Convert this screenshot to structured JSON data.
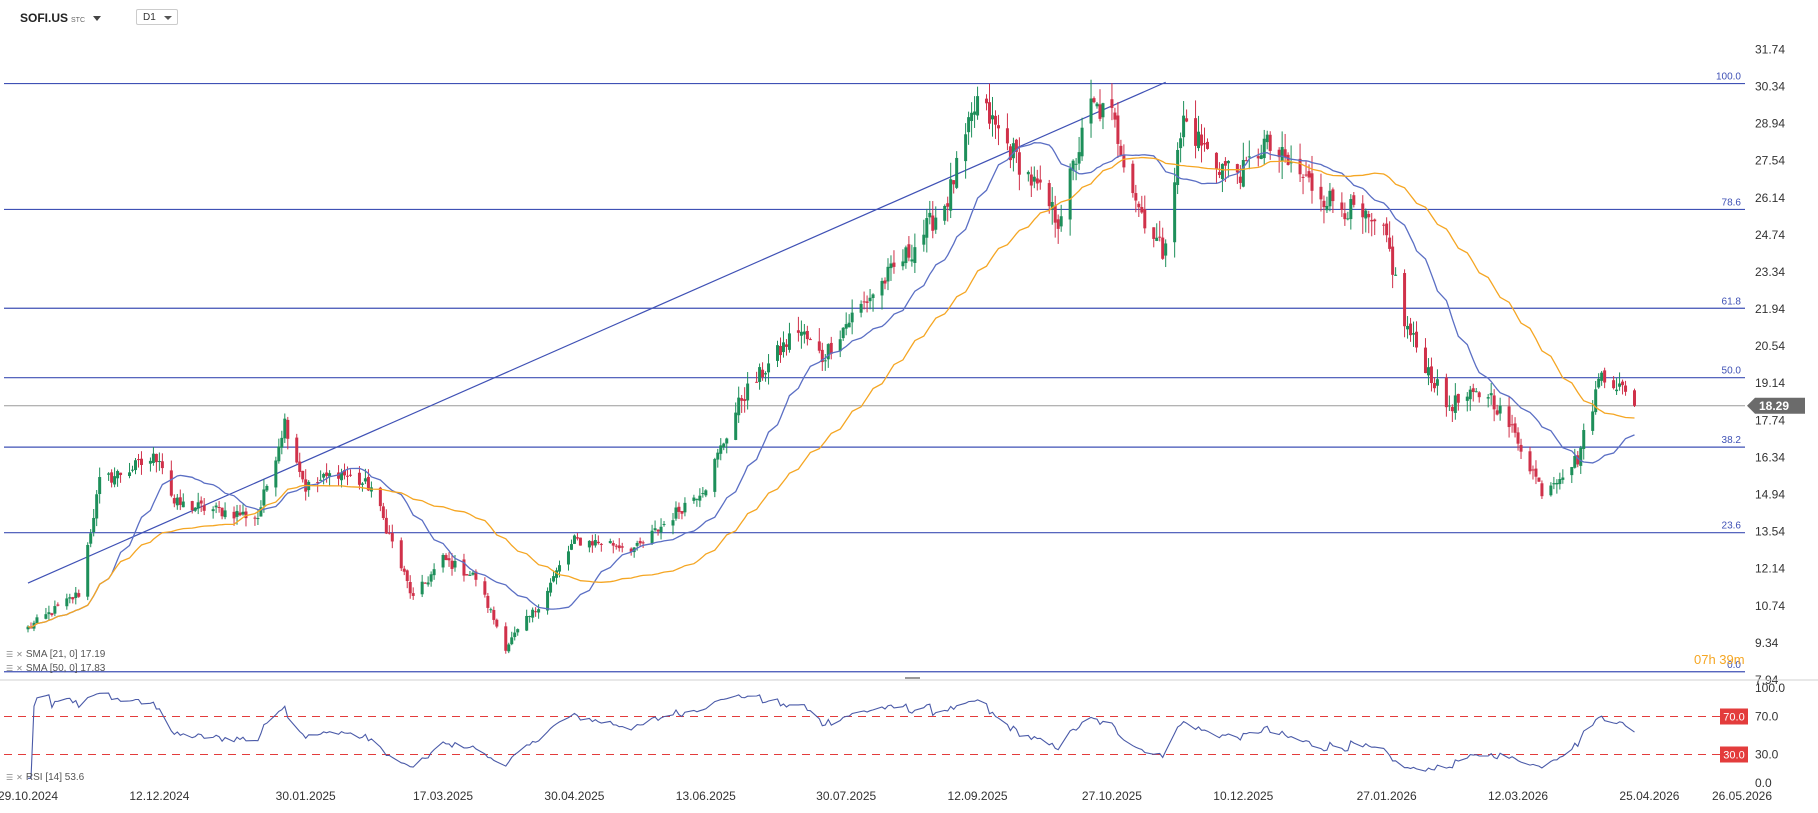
{
  "toolbar": {
    "symbol": "SOFI.US",
    "symbol_suffix": "STC",
    "interval": "D1"
  },
  "indicators": {
    "sma21": {
      "label": "SMA [21, 0] 17.19",
      "color": "#5b6fc4"
    },
    "sma50": {
      "label": "SMA [50, 0] 17.83",
      "color": "#f5a623"
    },
    "rsi": {
      "label": "RSI [14] 53.6",
      "color": "#4a5aa8"
    }
  },
  "countdown": "07h 39m",
  "colors": {
    "up": "#1d8f5a",
    "down": "#d0314a",
    "fib": "#3f51b5",
    "price_box": "#6b6b6b",
    "rsi_level": "#e33c3c"
  },
  "chart_data": {
    "type": "candlestick",
    "price_axis": {
      "ylim": [
        7.94,
        33.0
      ],
      "ticks": [
        31.74,
        30.34,
        28.94,
        27.54,
        26.14,
        24.74,
        23.34,
        21.94,
        20.54,
        19.14,
        17.74,
        16.34,
        14.94,
        13.54,
        12.14,
        10.74,
        9.34,
        7.94
      ]
    },
    "current_price": 18.29,
    "fib_levels": [
      {
        "label": "100.0",
        "value": 30.45
      },
      {
        "label": "78.6",
        "value": 25.7
      },
      {
        "label": "61.8",
        "value": 21.97
      },
      {
        "label": "50.0",
        "value": 19.35
      },
      {
        "label": "38.2",
        "value": 16.73
      },
      {
        "label": "23.6",
        "value": 13.5
      },
      {
        "label": "0.0",
        "value": 8.25
      }
    ],
    "x_axis_labels": [
      "29.10.2024",
      "12.12.2024",
      "30.01.2025",
      "17.03.2025",
      "30.04.2025",
      "13.06.2025",
      "30.07.2025",
      "12.09.2025",
      "27.10.2025",
      "10.12.2025",
      "27.01.2026",
      "12.03.2026",
      "25.04.2026",
      "26.05.2026"
    ],
    "anchors": [
      {
        "label": "29.10.2024",
        "close": 9.9
      },
      {
        "label": "12.12.2024",
        "close": 16.4
      },
      {
        "label": "30.01.2025",
        "close": 15.2
      },
      {
        "label": "17.03.2025",
        "close": 12.5
      },
      {
        "label": "30.04.2025",
        "close": 13.2
      },
      {
        "label": "13.06.2025",
        "close": 15.3
      },
      {
        "label": "30.07.2025",
        "close": 21.4
      },
      {
        "label": "12.09.2025",
        "close": 29.8
      },
      {
        "label": "27.10.2025",
        "close": 29.2
      },
      {
        "label": "10.12.2025",
        "close": 27.1
      },
      {
        "label": "27.01.2026",
        "close": 24.6
      },
      {
        "label": "12.03.2026",
        "close": 17.0
      },
      {
        "label": "20.04.2026",
        "close": 18.29
      }
    ],
    "key_points": [
      {
        "date": "15.11.2024",
        "close": 11.2
      },
      {
        "date": "22.11.2024",
        "close": 15.4
      },
      {
        "date": "17.12.2024",
        "close": 14.6
      },
      {
        "date": "14.01.2025",
        "close": 14.1
      },
      {
        "date": "23.01.2025",
        "close": 17.7
      },
      {
        "date": "10.02.2025",
        "close": 15.8
      },
      {
        "date": "21.02.2025",
        "close": 15.2
      },
      {
        "date": "07.03.2025",
        "close": 11.0
      },
      {
        "date": "28.03.2025",
        "close": 11.8
      },
      {
        "date": "07.04.2025",
        "close": 9.2
      },
      {
        "date": "17.04.2025",
        "close": 10.6
      },
      {
        "date": "12.05.2025",
        "close": 13.1
      },
      {
        "date": "21.05.2025",
        "close": 12.9
      },
      {
        "date": "25.06.2025",
        "close": 18.6
      },
      {
        "date": "14.07.2025",
        "close": 21.2
      },
      {
        "date": "22.07.2025",
        "close": 20.1
      },
      {
        "date": "21.08.2025",
        "close": 24.2
      },
      {
        "date": "02.09.2025",
        "close": 26.1
      },
      {
        "date": "09.10.2025",
        "close": 25.3
      },
      {
        "date": "20.10.2025",
        "close": 29.6
      },
      {
        "date": "05.11.2025",
        "close": 25.8
      },
      {
        "date": "13.11.2025",
        "close": 24.1
      },
      {
        "date": "20.11.2025",
        "close": 29.1
      },
      {
        "date": "01.12.2025",
        "close": 27.4
      },
      {
        "date": "17.12.2025",
        "close": 28.2
      },
      {
        "date": "06.01.2026",
        "close": 26.2
      },
      {
        "date": "16.01.2026",
        "close": 25.6
      },
      {
        "date": "02.02.2026",
        "close": 21.4
      },
      {
        "date": "16.02.2026",
        "close": 18.3
      },
      {
        "date": "02.03.2026",
        "close": 18.8
      },
      {
        "date": "20.03.2026",
        "close": 15.1
      },
      {
        "date": "01.04.2026",
        "close": 16.3
      },
      {
        "date": "09.04.2026",
        "close": 19.6
      },
      {
        "date": "15.04.2026",
        "close": 19.0
      }
    ],
    "sma21_last": 17.19,
    "sma50_last": 17.83,
    "rsi_axis": {
      "ylim": [
        0,
        100
      ],
      "ticks": [
        100.0,
        70.0,
        30.0,
        0.0
      ]
    },
    "rsi_levels": [
      70.0,
      30.0
    ],
    "rsi_last": 53.6,
    "trendline": [
      {
        "date": "29.10.2024",
        "price": 11.6
      },
      {
        "date": "14.11.2025",
        "price": 30.5
      }
    ]
  }
}
